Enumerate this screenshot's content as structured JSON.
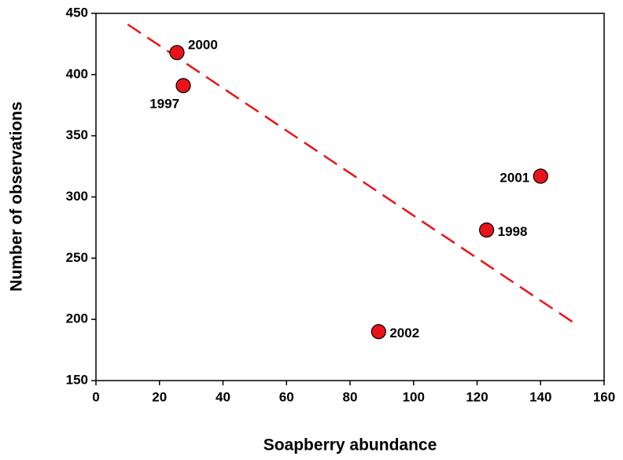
{
  "chart_data": {
    "type": "scatter",
    "xlabel": "Soapberry abundance",
    "ylabel": "Number of observations",
    "series": [
      {
        "color": "#e8141a",
        "x": [
          25.5,
          27.5,
          140,
          123,
          89
        ],
        "values": [
          418,
          391,
          317,
          273,
          190
        ],
        "labels": [
          "2000",
          "1997",
          "2001",
          "1998",
          "2002"
        ]
      }
    ],
    "trendline": {
      "x": [
        10,
        150
      ],
      "values": [
        441,
        198
      ],
      "color": "#e8141a"
    },
    "xlim": [
      0,
      160
    ],
    "xticks": [
      0,
      20,
      40,
      60,
      80,
      100,
      120,
      140,
      160
    ],
    "ylim": [
      150,
      450
    ],
    "yticks": [
      150,
      200,
      250,
      300,
      350,
      400,
      450
    ],
    "grid": false
  }
}
